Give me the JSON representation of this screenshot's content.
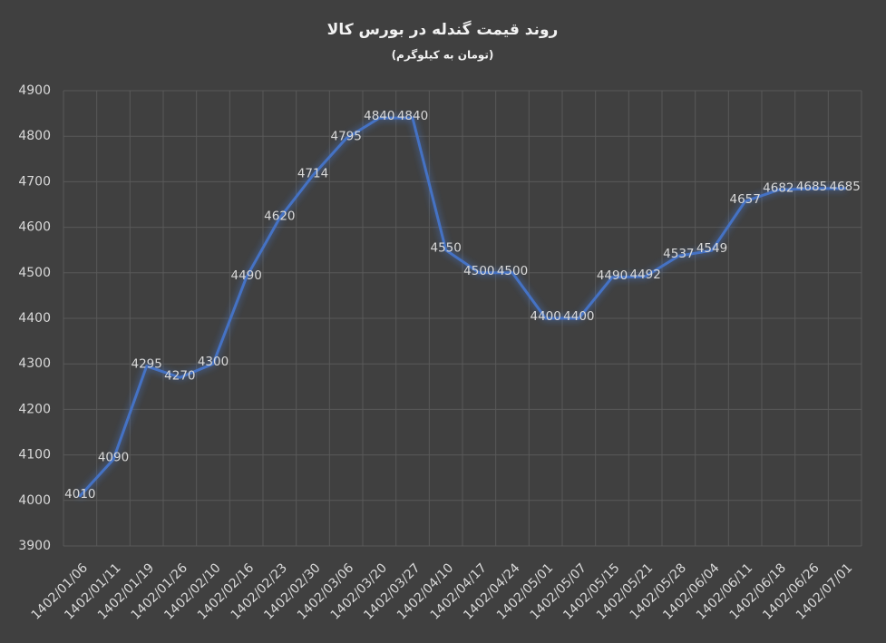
{
  "chart_data": {
    "type": "line",
    "title": "روند قیمت گندله در بورس کالا",
    "subtitle": "(تومان به کیلوگرم)",
    "categories": [
      "1402/01/06",
      "1402/01/11",
      "1402/01/19",
      "1402/01/26",
      "1402/02/10",
      "1402/02/16",
      "1402/02/23",
      "1402/02/30",
      "1402/03/06",
      "1402/03/20",
      "1402/03/27",
      "1402/04/10",
      "1402/04/17",
      "1402/04/24",
      "1402/05/01",
      "1402/05/07",
      "1402/05/15",
      "1402/05/21",
      "1402/05/28",
      "1402/06/04",
      "1402/06/11",
      "1402/06/18",
      "1402/06/26",
      "1402/07/01"
    ],
    "values": [
      4010,
      4090,
      4295,
      4270,
      4300,
      4490,
      4620,
      4714,
      4795,
      4840,
      4840,
      4550,
      4500,
      4500,
      4400,
      4400,
      4490,
      4492,
      4537,
      4549,
      4657,
      4682,
      4685,
      4685
    ],
    "color": "#4472c4",
    "ylim": [
      3900,
      4900
    ],
    "yticks": [
      3900,
      4000,
      4100,
      4200,
      4300,
      4400,
      4500,
      4600,
      4700,
      4800,
      4900
    ],
    "grid": true
  }
}
